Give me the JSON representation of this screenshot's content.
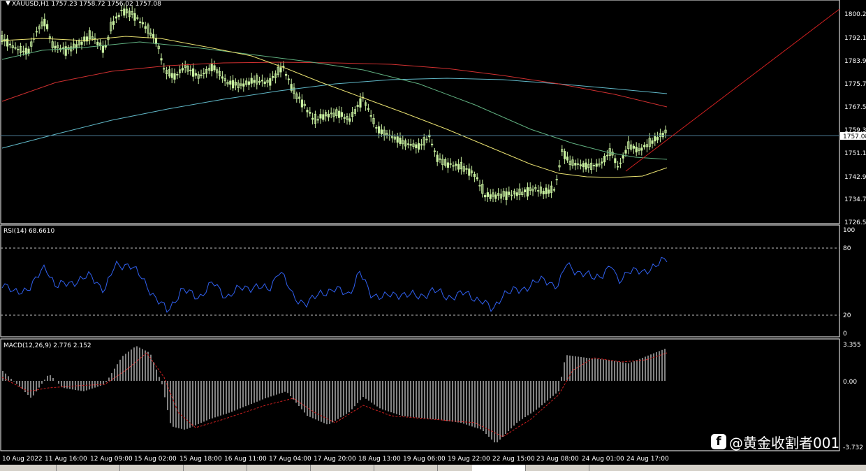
{
  "symbol_header": "XAUUSD,H1  1757.23 1758.72 1756.02 1757.08",
  "rsi_header": "RSI(14) 68.6610",
  "macd_header": "MACD(12,26,9) 2.776 2.152",
  "price_axis": [
    "1800.20",
    "1792.10",
    "1783.90",
    "1775.70",
    "1767.50",
    "1759.30",
    "1751.10",
    "1742.90",
    "1734.70",
    "1726.50"
  ],
  "current_price": "1757.08",
  "rsi_axis": [
    "100",
    "80",
    "20",
    "0"
  ],
  "macd_axis": [
    "3.355",
    "0.00",
    "-3.732"
  ],
  "time_axis": [
    "10 Aug 2022",
    "11 Aug 16:00",
    "12 Aug 09:00",
    "15 Aug 02:00",
    "15 Aug 18:00",
    "16 Aug 11:00",
    "17 Aug 04:00",
    "17 Aug 20:00",
    "18 Aug 13:00",
    "19 Aug 06:00",
    "19 Aug 22:00",
    "22 Aug 15:00",
    "23 Aug 08:00",
    "24 Aug 01:00",
    "24 Aug 17:00"
  ],
  "watermark": "@黄金收割者001",
  "watermark_icon": "f",
  "colors": {
    "background": "#000000",
    "candle": "#c8f0a0",
    "ma_yellow": "#e8e070",
    "ma_green": "#60b080",
    "ma_red": "#d03030",
    "ma_blue": "#60b8c8",
    "rsi_line": "#3060f0",
    "macd_hist": "#d8d8d8",
    "macd_signal": "#d02020",
    "trendline": "#d02020",
    "level_line": "#4a7890"
  }
}
